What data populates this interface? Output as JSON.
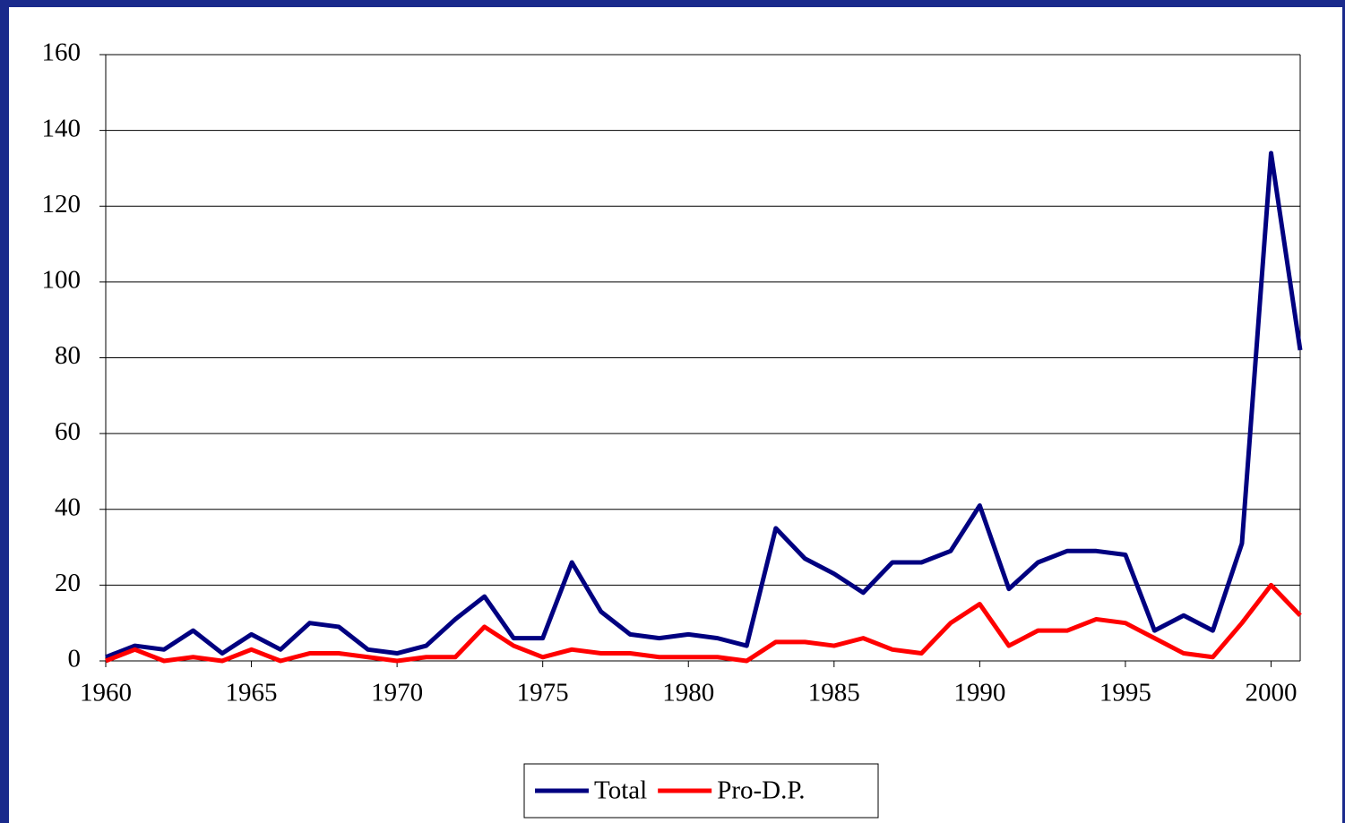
{
  "chart_data": {
    "type": "line",
    "x": [
      1960,
      1961,
      1962,
      1963,
      1964,
      1965,
      1966,
      1967,
      1968,
      1969,
      1970,
      1971,
      1972,
      1973,
      1974,
      1975,
      1976,
      1977,
      1978,
      1979,
      1980,
      1981,
      1982,
      1983,
      1984,
      1985,
      1986,
      1987,
      1988,
      1989,
      1990,
      1991,
      1992,
      1993,
      1994,
      1995,
      1996,
      1997,
      1998,
      1999,
      2000,
      2001
    ],
    "series": [
      {
        "name": "Total",
        "color": "#000080",
        "values": [
          1,
          4,
          3,
          8,
          2,
          7,
          3,
          10,
          9,
          3,
          2,
          4,
          11,
          17,
          6,
          6,
          26,
          13,
          7,
          6,
          7,
          6,
          4,
          35,
          27,
          23,
          18,
          26,
          26,
          29,
          41,
          19,
          26,
          29,
          29,
          28,
          8,
          12,
          8,
          31,
          134,
          82
        ]
      },
      {
        "name": "Pro-D.P.",
        "color": "#ff0000",
        "values": [
          0,
          3,
          0,
          1,
          0,
          3,
          0,
          2,
          2,
          1,
          0,
          1,
          1,
          9,
          4,
          1,
          3,
          2,
          2,
          1,
          1,
          1,
          0,
          5,
          5,
          4,
          6,
          3,
          2,
          10,
          15,
          4,
          8,
          8,
          11,
          10,
          6,
          2,
          1,
          10,
          20,
          12
        ]
      }
    ],
    "xlim": [
      1960,
      2001
    ],
    "xticks": [
      1960,
      1965,
      1970,
      1975,
      1980,
      1985,
      1990,
      1995,
      2000
    ],
    "ylim": [
      0,
      160
    ],
    "yticks": [
      0,
      20,
      40,
      60,
      80,
      100,
      120,
      140,
      160
    ],
    "grid": true,
    "legend": "bottom"
  }
}
